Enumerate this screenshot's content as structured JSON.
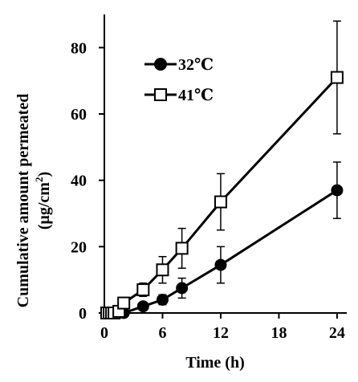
{
  "chart_data": {
    "type": "line",
    "xlabel": "Time (h)",
    "ylabel_line1": "Cumulative amount  permeated",
    "ylabel_line2": "(μg/cm",
    "ylabel_sup": "2",
    "ylabel_line2_end": ")",
    "xlim": [
      0,
      25
    ],
    "ylim": [
      0,
      90
    ],
    "x_ticks": [
      0,
      6,
      12,
      18,
      24
    ],
    "y_ticks": [
      0,
      20,
      40,
      60,
      80
    ],
    "legend_position": "top-left",
    "series": [
      {
        "name": "32℃",
        "marker": "filled-circle",
        "color": "#000000",
        "points": [
          {
            "x": 0.25,
            "y": 0,
            "err": 0
          },
          {
            "x": 0.5,
            "y": 0,
            "err": 0
          },
          {
            "x": 0.75,
            "y": 0,
            "err": 0
          },
          {
            "x": 1,
            "y": 0,
            "err": 0
          },
          {
            "x": 1.5,
            "y": 0,
            "err": 0
          },
          {
            "x": 2,
            "y": 0,
            "err": 0
          },
          {
            "x": 4,
            "y": 2,
            "err": 0.5
          },
          {
            "x": 6,
            "y": 4,
            "err": 1.5
          },
          {
            "x": 8,
            "y": 7.5,
            "err": 3
          },
          {
            "x": 12,
            "y": 14.5,
            "err": 5.5
          },
          {
            "x": 24,
            "y": 37,
            "err": 8.5
          }
        ]
      },
      {
        "name": "41℃",
        "marker": "open-square",
        "color": "#000000",
        "points": [
          {
            "x": 0.25,
            "y": 0,
            "err": 0
          },
          {
            "x": 0.5,
            "y": 0,
            "err": 0
          },
          {
            "x": 0.75,
            "y": 0,
            "err": 0
          },
          {
            "x": 1,
            "y": 0,
            "err": 0
          },
          {
            "x": 1.5,
            "y": 0.5,
            "err": 0
          },
          {
            "x": 2,
            "y": 3,
            "err": 0.5
          },
          {
            "x": 4,
            "y": 7,
            "err": 2
          },
          {
            "x": 6,
            "y": 13,
            "err": 4
          },
          {
            "x": 8,
            "y": 19.5,
            "err": 6
          },
          {
            "x": 12,
            "y": 33.5,
            "err": 8.5
          },
          {
            "x": 24,
            "y": 71,
            "err": 17
          }
        ]
      }
    ]
  }
}
